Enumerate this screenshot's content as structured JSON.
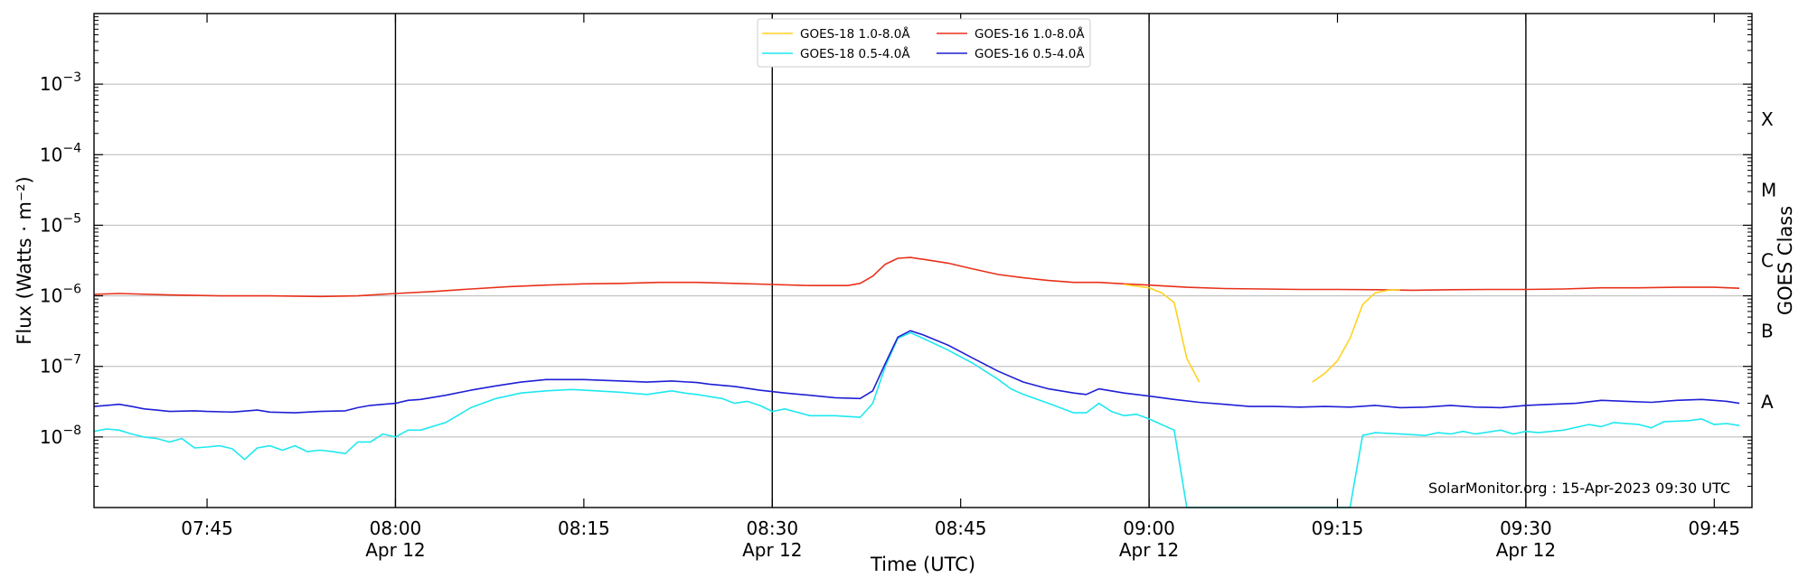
{
  "chart_data": {
    "type": "line",
    "title": "",
    "xlabel": "Time (UTC)",
    "ylabel": "Flux (Watts · m⁻²)",
    "y2label": "GOES Class",
    "yscale": "log",
    "ylim": [
      1e-09,
      0.01
    ],
    "xlim": [
      "07:36",
      "09:48"
    ],
    "x_ticks": [
      {
        "time": "07:45",
        "label": "07:45",
        "sub": ""
      },
      {
        "time": "08:00",
        "label": "08:00",
        "sub": "Apr 12"
      },
      {
        "time": "08:15",
        "label": "08:15",
        "sub": ""
      },
      {
        "time": "08:30",
        "label": "08:30",
        "sub": "Apr 12"
      },
      {
        "time": "08:45",
        "label": "08:45",
        "sub": ""
      },
      {
        "time": "09:00",
        "label": "09:00",
        "sub": "Apr 12"
      },
      {
        "time": "09:15",
        "label": "09:15",
        "sub": ""
      },
      {
        "time": "09:30",
        "label": "09:30",
        "sub": "Apr 12"
      },
      {
        "time": "09:45",
        "label": "09:45",
        "sub": ""
      }
    ],
    "y_ticks": [
      {
        "value": 1e-08,
        "base": "10",
        "exp": "−8"
      },
      {
        "value": 1e-07,
        "base": "10",
        "exp": "−7"
      },
      {
        "value": 1e-06,
        "base": "10",
        "exp": "−6"
      },
      {
        "value": 1e-05,
        "base": "10",
        "exp": "−5"
      },
      {
        "value": 0.0001,
        "base": "10",
        "exp": "−4"
      },
      {
        "value": 0.001,
        "base": "10",
        "exp": "−3"
      }
    ],
    "class_labels": [
      {
        "label": "A",
        "value": 3.16e-08
      },
      {
        "label": "B",
        "value": 3.16e-07
      },
      {
        "label": "C",
        "value": 3.16e-06
      },
      {
        "label": "M",
        "value": 3.16e-05
      },
      {
        "label": "X",
        "value": 0.000316
      }
    ],
    "vertical_lines": [
      "08:00",
      "08:30",
      "09:00",
      "09:30"
    ],
    "grid": "horizontal",
    "legend_position": "top-center",
    "credit": "SolarMonitor.org : 15-Apr-2023 09:30 UTC",
    "series": [
      {
        "name": "GOES-18 1.0-8.0Å",
        "color": "#ffd21f",
        "points": [
          [
            "08:58",
            1.45e-06
          ],
          [
            "09:00",
            1.3e-06
          ],
          [
            "09:01",
            1.1e-06
          ],
          [
            "09:02",
            8e-07
          ],
          [
            "09:03",
            1.3e-07
          ],
          [
            "09:04",
            6e-08
          ],
          null,
          [
            "09:13",
            6e-08
          ],
          [
            "09:14",
            8e-08
          ],
          [
            "09:15",
            1.2e-07
          ],
          [
            "09:16",
            2.5e-07
          ],
          [
            "09:17",
            7.5e-07
          ],
          [
            "09:18",
            1.1e-06
          ],
          [
            "09:19",
            1.2e-06
          ],
          [
            "09:20",
            1.22e-06
          ]
        ]
      },
      {
        "name": "GOES-16 1.0-8.0Å",
        "color": "#e8311a",
        "points": [
          [
            "07:36",
            1.05e-06
          ],
          [
            "07:38",
            1.08e-06
          ],
          [
            "07:42",
            1.03e-06
          ],
          [
            "07:46",
            1e-06
          ],
          [
            "07:50",
            1e-06
          ],
          [
            "07:54",
            9.8e-07
          ],
          [
            "07:57",
            1e-06
          ],
          [
            "08:00",
            1.08e-06
          ],
          [
            "08:03",
            1.15e-06
          ],
          [
            "08:06",
            1.25e-06
          ],
          [
            "08:09",
            1.35e-06
          ],
          [
            "08:12",
            1.42e-06
          ],
          [
            "08:15",
            1.48e-06
          ],
          [
            "08:18",
            1.5e-06
          ],
          [
            "08:21",
            1.55e-06
          ],
          [
            "08:24",
            1.55e-06
          ],
          [
            "08:27",
            1.5e-06
          ],
          [
            "08:30",
            1.45e-06
          ],
          [
            "08:33",
            1.4e-06
          ],
          [
            "08:36",
            1.4e-06
          ],
          [
            "08:37",
            1.5e-06
          ],
          [
            "08:38",
            1.9e-06
          ],
          [
            "08:39",
            2.8e-06
          ],
          [
            "08:40",
            3.4e-06
          ],
          [
            "08:41",
            3.5e-06
          ],
          [
            "08:42",
            3.3e-06
          ],
          [
            "08:44",
            2.9e-06
          ],
          [
            "08:46",
            2.4e-06
          ],
          [
            "08:48",
            2e-06
          ],
          [
            "08:50",
            1.8e-06
          ],
          [
            "08:52",
            1.65e-06
          ],
          [
            "08:54",
            1.55e-06
          ],
          [
            "08:56",
            1.55e-06
          ],
          [
            "08:58",
            1.48e-06
          ],
          [
            "09:00",
            1.42e-06
          ],
          [
            "09:03",
            1.32e-06
          ],
          [
            "09:06",
            1.27e-06
          ],
          [
            "09:09",
            1.25e-06
          ],
          [
            "09:12",
            1.23e-06
          ],
          [
            "09:15",
            1.23e-06
          ],
          [
            "09:18",
            1.22e-06
          ],
          [
            "09:21",
            1.2e-06
          ],
          [
            "09:24",
            1.22e-06
          ],
          [
            "09:27",
            1.23e-06
          ],
          [
            "09:30",
            1.23e-06
          ],
          [
            "09:33",
            1.25e-06
          ],
          [
            "09:36",
            1.3e-06
          ],
          [
            "09:39",
            1.3e-06
          ],
          [
            "09:42",
            1.32e-06
          ],
          [
            "09:45",
            1.32e-06
          ],
          [
            "09:47",
            1.28e-06
          ]
        ]
      },
      {
        "name": "GOES-18 0.5-4.0Å",
        "color": "#1ee8f0",
        "points": [
          [
            "07:36",
            1.2e-08
          ],
          [
            "07:37",
            1.3e-08
          ],
          [
            "07:38",
            1.25e-08
          ],
          [
            "07:39",
            1.1e-08
          ],
          [
            "07:40",
            1e-08
          ],
          [
            "07:41",
            9.5e-09
          ],
          [
            "07:42",
            8.5e-09
          ],
          [
            "07:43",
            9.5e-09
          ],
          [
            "07:44",
            7e-09
          ],
          [
            "07:45",
            7.2e-09
          ],
          [
            "07:46",
            7.5e-09
          ],
          [
            "07:47",
            6.8e-09
          ],
          [
            "07:48",
            4.8e-09
          ],
          [
            "07:49",
            7e-09
          ],
          [
            "07:50",
            7.5e-09
          ],
          [
            "07:51",
            6.5e-09
          ],
          [
            "07:52",
            7.5e-09
          ],
          [
            "07:53",
            6.2e-09
          ],
          [
            "07:54",
            6.5e-09
          ],
          [
            "07:55",
            6.2e-09
          ],
          [
            "07:56",
            5.8e-09
          ],
          [
            "07:57",
            8.5e-09
          ],
          [
            "07:58",
            8.5e-09
          ],
          [
            "07:59",
            1.1e-08
          ],
          [
            "08:00",
            1e-08
          ],
          [
            "08:01",
            1.25e-08
          ],
          [
            "08:02",
            1.25e-08
          ],
          [
            "08:04",
            1.6e-08
          ],
          [
            "08:06",
            2.6e-08
          ],
          [
            "08:08",
            3.5e-08
          ],
          [
            "08:10",
            4.2e-08
          ],
          [
            "08:12",
            4.5e-08
          ],
          [
            "08:14",
            4.7e-08
          ],
          [
            "08:16",
            4.5e-08
          ],
          [
            "08:18",
            4.3e-08
          ],
          [
            "08:20",
            4e-08
          ],
          [
            "08:22",
            4.5e-08
          ],
          [
            "08:23",
            4.2e-08
          ],
          [
            "08:24",
            4e-08
          ],
          [
            "08:26",
            3.5e-08
          ],
          [
            "08:27",
            3e-08
          ],
          [
            "08:28",
            3.2e-08
          ],
          [
            "08:29",
            2.8e-08
          ],
          [
            "08:30",
            2.3e-08
          ],
          [
            "08:31",
            2.5e-08
          ],
          [
            "08:33",
            2e-08
          ],
          [
            "08:35",
            2e-08
          ],
          [
            "08:37",
            1.9e-08
          ],
          [
            "08:38",
            3e-08
          ],
          [
            "08:39",
            1e-07
          ],
          [
            "08:40",
            2.5e-07
          ],
          [
            "08:41",
            3e-07
          ],
          [
            "08:42",
            2.5e-07
          ],
          [
            "08:44",
            1.7e-07
          ],
          [
            "08:46",
            1.1e-07
          ],
          [
            "08:48",
            6.5e-08
          ],
          [
            "08:49",
            4.8e-08
          ],
          [
            "08:50",
            4e-08
          ],
          [
            "08:52",
            3e-08
          ],
          [
            "08:54",
            2.2e-08
          ],
          [
            "08:55",
            2.2e-08
          ],
          [
            "08:56",
            3e-08
          ],
          [
            "08:57",
            2.3e-08
          ],
          [
            "08:58",
            2e-08
          ],
          [
            "08:59",
            2.1e-08
          ],
          [
            "09:00",
            1.8e-08
          ],
          [
            "09:01",
            1.5e-08
          ],
          [
            "09:02",
            1.25e-08
          ],
          [
            "09:03",
            1e-09
          ],
          [
            "09:16",
            1e-09
          ],
          [
            "09:17",
            1.05e-08
          ],
          [
            "09:18",
            1.15e-08
          ],
          [
            "09:20",
            1.1e-08
          ],
          [
            "09:22",
            1.05e-08
          ],
          [
            "09:23",
            1.15e-08
          ],
          [
            "09:24",
            1.1e-08
          ],
          [
            "09:25",
            1.2e-08
          ],
          [
            "09:26",
            1.1e-08
          ],
          [
            "09:28",
            1.25e-08
          ],
          [
            "09:29",
            1.1e-08
          ],
          [
            "09:30",
            1.2e-08
          ],
          [
            "09:31",
            1.15e-08
          ],
          [
            "09:33",
            1.25e-08
          ],
          [
            "09:35",
            1.5e-08
          ],
          [
            "09:36",
            1.4e-08
          ],
          [
            "09:37",
            1.6e-08
          ],
          [
            "09:39",
            1.5e-08
          ],
          [
            "09:40",
            1.35e-08
          ],
          [
            "09:41",
            1.65e-08
          ],
          [
            "09:43",
            1.7e-08
          ],
          [
            "09:44",
            1.8e-08
          ],
          [
            "09:45",
            1.5e-08
          ],
          [
            "09:46",
            1.55e-08
          ],
          [
            "09:47",
            1.45e-08
          ]
        ]
      },
      {
        "name": "GOES-16 0.5-4.0Å",
        "color": "#1f1fd6",
        "points": [
          [
            "07:36",
            2.7e-08
          ],
          [
            "07:37",
            2.8e-08
          ],
          [
            "07:38",
            2.9e-08
          ],
          [
            "07:39",
            2.7e-08
          ],
          [
            "07:40",
            2.5e-08
          ],
          [
            "07:41",
            2.4e-08
          ],
          [
            "07:42",
            2.3e-08
          ],
          [
            "07:44",
            2.35e-08
          ],
          [
            "07:45",
            2.3e-08
          ],
          [
            "07:47",
            2.25e-08
          ],
          [
            "07:49",
            2.4e-08
          ],
          [
            "07:50",
            2.25e-08
          ],
          [
            "07:52",
            2.2e-08
          ],
          [
            "07:54",
            2.3e-08
          ],
          [
            "07:56",
            2.35e-08
          ],
          [
            "07:57",
            2.6e-08
          ],
          [
            "07:58",
            2.8e-08
          ],
          [
            "08:00",
            3e-08
          ],
          [
            "08:01",
            3.3e-08
          ],
          [
            "08:02",
            3.4e-08
          ],
          [
            "08:04",
            3.9e-08
          ],
          [
            "08:06",
            4.6e-08
          ],
          [
            "08:08",
            5.3e-08
          ],
          [
            "08:10",
            6e-08
          ],
          [
            "08:12",
            6.5e-08
          ],
          [
            "08:15",
            6.5e-08
          ],
          [
            "08:18",
            6.2e-08
          ],
          [
            "08:20",
            6e-08
          ],
          [
            "08:22",
            6.2e-08
          ],
          [
            "08:24",
            5.9e-08
          ],
          [
            "08:25",
            5.6e-08
          ],
          [
            "08:27",
            5.2e-08
          ],
          [
            "08:29",
            4.6e-08
          ],
          [
            "08:31",
            4.2e-08
          ],
          [
            "08:33",
            3.9e-08
          ],
          [
            "08:35",
            3.6e-08
          ],
          [
            "08:37",
            3.5e-08
          ],
          [
            "08:38",
            4.5e-08
          ],
          [
            "08:39",
            1.1e-07
          ],
          [
            "08:40",
            2.6e-07
          ],
          [
            "08:41",
            3.2e-07
          ],
          [
            "08:42",
            2.8e-07
          ],
          [
            "08:44",
            2e-07
          ],
          [
            "08:46",
            1.3e-07
          ],
          [
            "08:48",
            8.5e-08
          ],
          [
            "08:50",
            6e-08
          ],
          [
            "08:52",
            4.8e-08
          ],
          [
            "08:54",
            4.2e-08
          ],
          [
            "08:55",
            4e-08
          ],
          [
            "08:56",
            4.8e-08
          ],
          [
            "08:58",
            4.2e-08
          ],
          [
            "09:00",
            3.8e-08
          ],
          [
            "09:02",
            3.4e-08
          ],
          [
            "09:04",
            3.1e-08
          ],
          [
            "09:06",
            2.9e-08
          ],
          [
            "09:08",
            2.7e-08
          ],
          [
            "09:10",
            2.7e-08
          ],
          [
            "09:12",
            2.65e-08
          ],
          [
            "09:14",
            2.7e-08
          ],
          [
            "09:16",
            2.65e-08
          ],
          [
            "09:18",
            2.8e-08
          ],
          [
            "09:20",
            2.6e-08
          ],
          [
            "09:22",
            2.65e-08
          ],
          [
            "09:24",
            2.8e-08
          ],
          [
            "09:26",
            2.65e-08
          ],
          [
            "09:28",
            2.6e-08
          ],
          [
            "09:30",
            2.8e-08
          ],
          [
            "09:32",
            2.9e-08
          ],
          [
            "09:34",
            3e-08
          ],
          [
            "09:36",
            3.3e-08
          ],
          [
            "09:38",
            3.2e-08
          ],
          [
            "09:40",
            3.1e-08
          ],
          [
            "09:42",
            3.3e-08
          ],
          [
            "09:44",
            3.4e-08
          ],
          [
            "09:46",
            3.2e-08
          ],
          [
            "09:47",
            3e-08
          ]
        ]
      }
    ]
  }
}
